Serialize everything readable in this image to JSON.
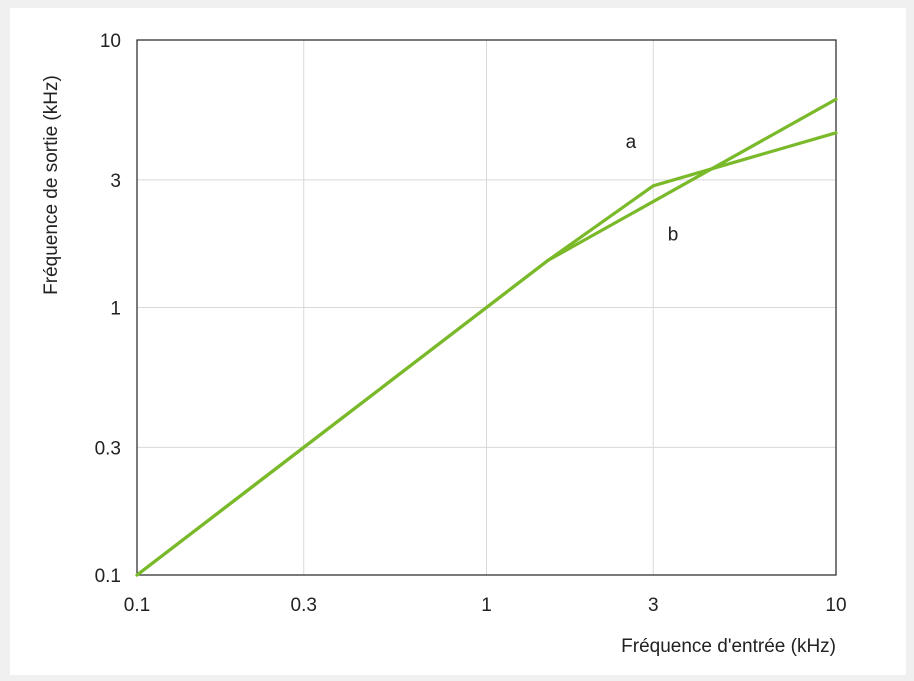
{
  "chart_data": {
    "type": "line",
    "xlabel": "Fréquence d'entrée (kHz)",
    "ylabel": "Fréquence de sortie (kHz)",
    "xscale": "log",
    "yscale": "log",
    "xlim": [
      0.1,
      10
    ],
    "ylim": [
      0.1,
      10
    ],
    "x_ticks": [
      0.1,
      0.3,
      1,
      3,
      10
    ],
    "x_tick_labels": [
      "0.1",
      "0.3",
      "1",
      "3",
      "10"
    ],
    "y_ticks": [
      0.1,
      0.3,
      1,
      3,
      10
    ],
    "y_tick_labels": [
      "0.1",
      "0.3",
      "1",
      "3",
      "10"
    ],
    "grid": true,
    "line_color": "#7ab929",
    "grid_color": "#d9d9d9",
    "series": [
      {
        "name": "a",
        "x": [
          0.1,
          1.5,
          3,
          10
        ],
        "y": [
          0.1,
          1.5,
          2.85,
          4.5
        ]
      },
      {
        "name": "b",
        "x": [
          0.1,
          1.5,
          10
        ],
        "y": [
          0.1,
          1.5,
          6.0
        ]
      }
    ],
    "annotations": [
      {
        "text": "a",
        "x": 2.5,
        "y": 3.95
      },
      {
        "text": "b",
        "x": 3.3,
        "y": 1.78
      }
    ]
  }
}
